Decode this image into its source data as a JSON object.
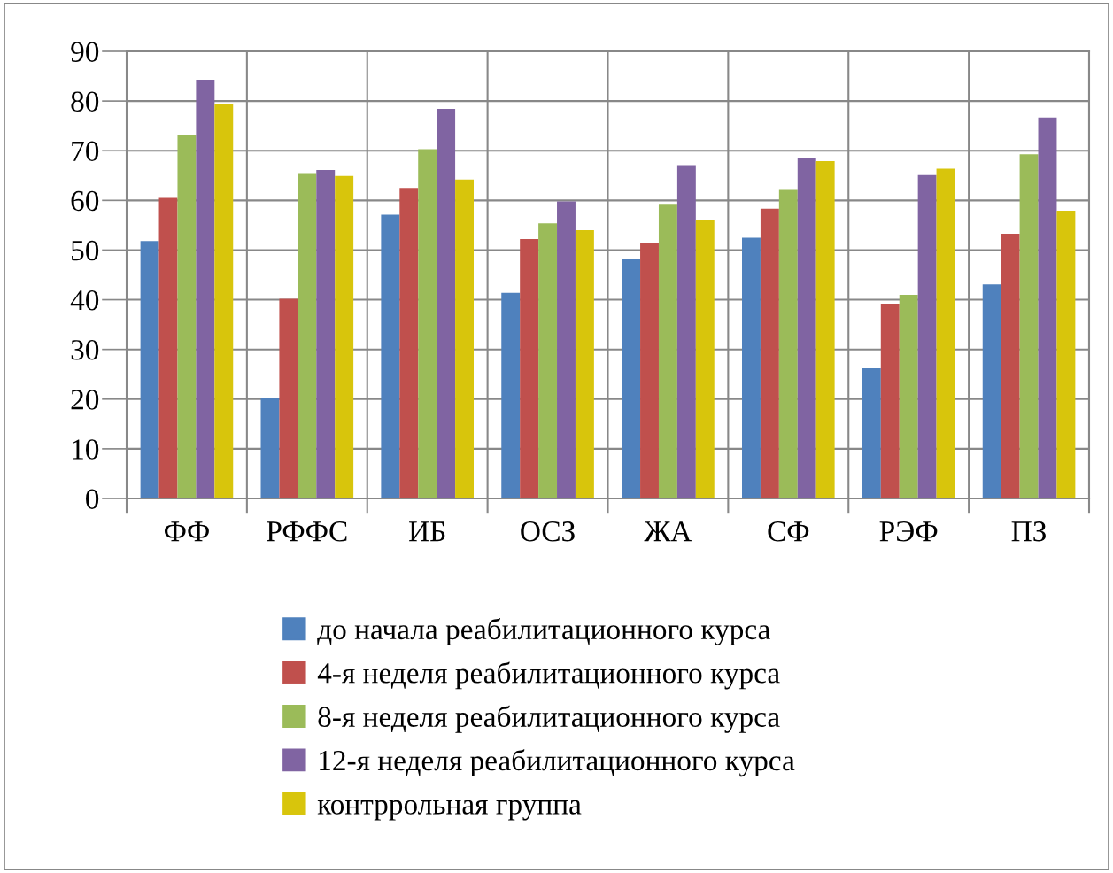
{
  "chart_data": {
    "type": "bar",
    "categories": [
      "ФФ",
      "РФФС",
      "ИБ",
      "ОСЗ",
      "ЖА",
      "СФ",
      "РЭФ",
      "ПЗ"
    ],
    "series": [
      {
        "name": "до начала реабилитационного курса",
        "color": "#4f81bd",
        "values": [
          51.8,
          20.2,
          57.1,
          41.4,
          48.3,
          52.5,
          26.2,
          43.1
        ]
      },
      {
        "name": "4-я неделя реабилитационного курса",
        "color": "#c0504d",
        "values": [
          60.5,
          40.2,
          62.5,
          52.2,
          51.5,
          58.3,
          39.2,
          53.3
        ]
      },
      {
        "name": "8-я неделя реабилитационного курса",
        "color": "#9bbb59",
        "values": [
          73.2,
          65.5,
          70.3,
          55.4,
          59.3,
          62.1,
          41.0,
          69.3
        ]
      },
      {
        "name": "12-я неделя реабилитационного курса",
        "color": "#8064a2",
        "values": [
          84.3,
          66.1,
          78.4,
          59.8,
          67.1,
          68.5,
          65.1,
          76.7
        ]
      },
      {
        "name": "контррольная группа",
        "color": "#d8c50c",
        "values": [
          79.5,
          64.9,
          64.2,
          54.0,
          56.1,
          67.9,
          66.4,
          57.9
        ]
      }
    ],
    "ylim": [
      0,
      90
    ],
    "yticks": [
      0,
      10,
      20,
      30,
      40,
      50,
      60,
      70,
      80,
      90
    ],
    "grid": true,
    "legend": "bottom"
  }
}
